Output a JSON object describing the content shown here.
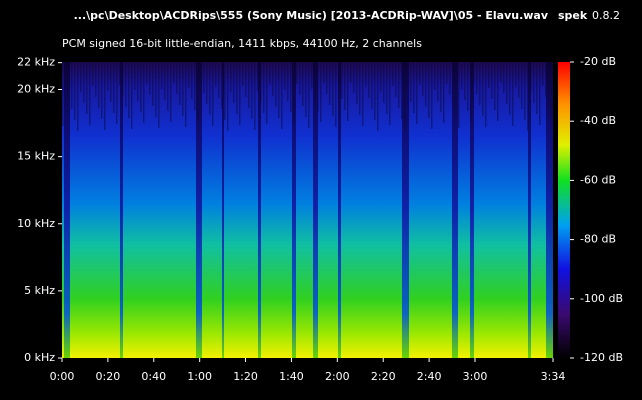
{
  "chart_data": {
    "type": "spectrogram",
    "title": "...\\pc\\Desktop\\ACDRips\\555 (Sony Music) [2013-ACDRip-WAV]\\05 - Elavu.wav",
    "app": "spek",
    "version": "0.8.2",
    "subtitle": "PCM signed 16-bit little-endian, 1411 kbps, 44100 Hz, 2 channels",
    "xlim": [
      0,
      214
    ],
    "xticks": [
      {
        "value": 0,
        "label": "0:00"
      },
      {
        "value": 20,
        "label": "0:20"
      },
      {
        "value": 40,
        "label": "0:40"
      },
      {
        "value": 60,
        "label": "1:00"
      },
      {
        "value": 80,
        "label": "1:20"
      },
      {
        "value": 100,
        "label": "1:40"
      },
      {
        "value": 120,
        "label": "2:00"
      },
      {
        "value": 140,
        "label": "2:20"
      },
      {
        "value": 160,
        "label": "2:40"
      },
      {
        "value": 180,
        "label": "3:00"
      },
      {
        "value": 214,
        "label": "3:34"
      }
    ],
    "ylim": [
      0,
      22.05
    ],
    "yticks": [
      {
        "value": 0,
        "label": "0 kHz"
      },
      {
        "value": 5,
        "label": "5 kHz"
      },
      {
        "value": 10,
        "label": "10 kHz"
      },
      {
        "value": 15,
        "label": "15 kHz"
      },
      {
        "value": 20,
        "label": "20 kHz"
      },
      {
        "value": 22,
        "label": "22 kHz"
      }
    ],
    "colorbar": {
      "lim": [
        -120,
        -20
      ],
      "ticks": [
        {
          "value": -20,
          "label": "-20 dB"
        },
        {
          "value": -40,
          "label": "-40 dB"
        },
        {
          "value": -60,
          "label": "-60 dB"
        },
        {
          "value": -80,
          "label": "-80 dB"
        },
        {
          "value": -100,
          "label": "-100 dB"
        },
        {
          "value": -120,
          "label": "-120 dB"
        }
      ]
    }
  }
}
